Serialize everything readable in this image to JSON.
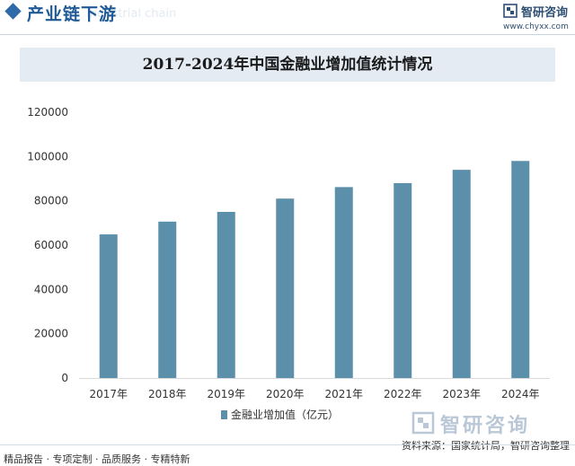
{
  "header": {
    "section_title": "产业链下游",
    "title_shadow": "Industrial chain",
    "logo_name": "智研咨询",
    "logo_url": "www.chyxx.com"
  },
  "chart_title": "2017-2024年中国金融业增加值统计情况",
  "chart_data": {
    "type": "bar",
    "title": "2017-2024年中国金融业增加值统计情况",
    "xlabel": "",
    "ylabel": "",
    "categories": [
      "2017年",
      "2018年",
      "2019年",
      "2020年",
      "2021年",
      "2022年",
      "2023年",
      "2024年"
    ],
    "series": [
      {
        "name": "金融业增加值（亿元）",
        "values": [
          64844,
          70610,
          75000,
          81000,
          86200,
          88000,
          94000,
          98000
        ]
      }
    ],
    "ylim": [
      0,
      120000
    ],
    "yticks": [
      0,
      20000,
      40000,
      60000,
      80000,
      100000,
      120000
    ],
    "grid": false,
    "legend_position": "bottom",
    "bar_color": "#5b8faa"
  },
  "footer": {
    "services": "精品报告 · 专项定制 · 品质服务 · 专精特新",
    "source": "资料来源：国家统计局，智研咨询整理"
  },
  "watermark": "智研咨询"
}
